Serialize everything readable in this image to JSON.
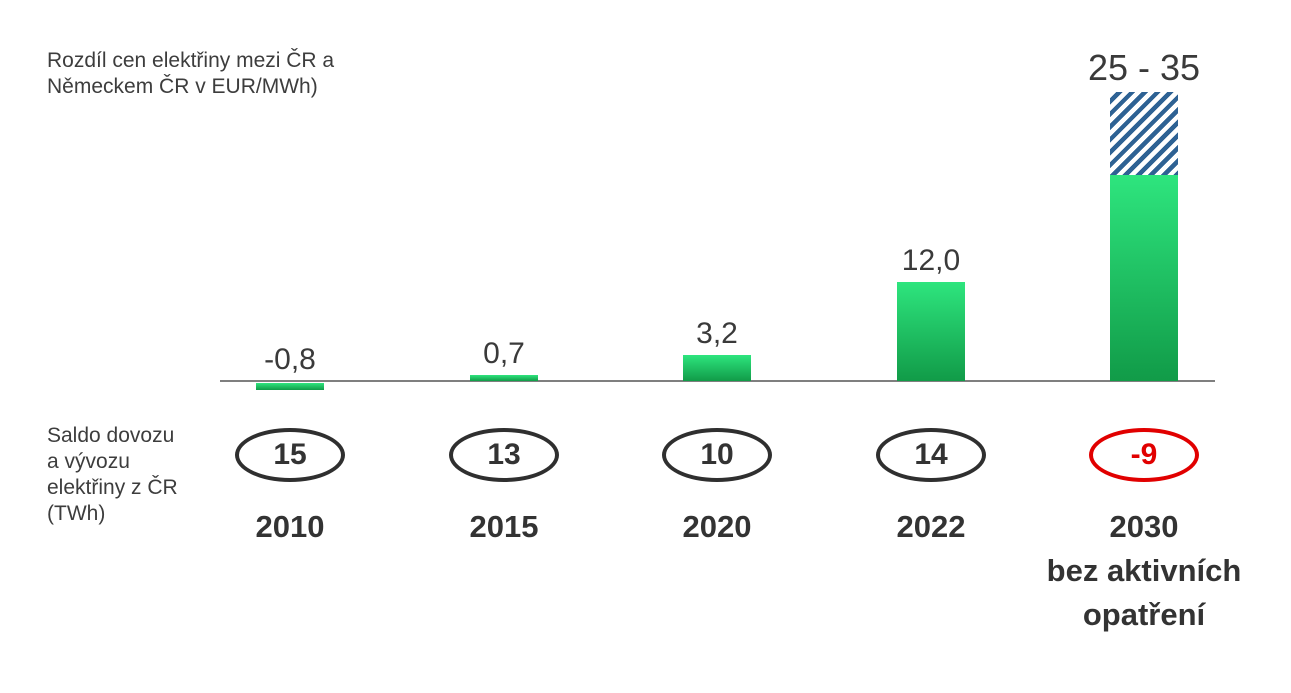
{
  "colors": {
    "bar_green_top": "#2ee57e",
    "bar_green_bottom": "#119b48",
    "hatch_blue": "#2e6294",
    "axis_line": "#7f7f7f",
    "text_dark": "#3d3d3d",
    "year_text": "#333333",
    "oval_stroke": "#2f2f2f",
    "oval_negative": "#e10000"
  },
  "chart_data": {
    "type": "bar",
    "title": "Rozdíl cen elektřiny mezi ČR a Německem ČR v EUR/MWh)",
    "title_lines": [
      "Rozdíl cen elektřiny mezi ČR a",
      "Německem ČR v EUR/MWh)"
    ],
    "secondary_label": "Saldo dovozu a vývozu elektřiny z ČR (TWh)",
    "secondary_label_lines": [
      "Saldo dovozu",
      "a vývozu",
      "elektřiny z ČR",
      "(TWh)"
    ],
    "categories": [
      "2010",
      "2015",
      "2020",
      "2022",
      "2030 bez aktivních opatření"
    ],
    "baseline_value": 0,
    "grid": false,
    "legend": null,
    "bars": [
      {
        "year": "2010",
        "value": -0.8,
        "label": "-0,8",
        "saldo": 15,
        "saldo_text": "15",
        "saldo_negative": false
      },
      {
        "year": "2015",
        "value": 0.7,
        "label": "0,7",
        "saldo": 13,
        "saldo_text": "13",
        "saldo_negative": false
      },
      {
        "year": "2020",
        "value": 3.2,
        "label": "3,2",
        "saldo": 10,
        "saldo_text": "10",
        "saldo_negative": false
      },
      {
        "year": "2022",
        "value": 12.0,
        "label": "12,0",
        "saldo": 14,
        "saldo_text": "14",
        "saldo_negative": false
      },
      {
        "year": "2030",
        "range": [
          25,
          35
        ],
        "range_style": "hatched",
        "label": "25 - 35",
        "saldo": -9,
        "saldo_text": "-9",
        "saldo_negative": true,
        "year_note": [
          "bez aktivních",
          "opatření"
        ]
      }
    ]
  }
}
